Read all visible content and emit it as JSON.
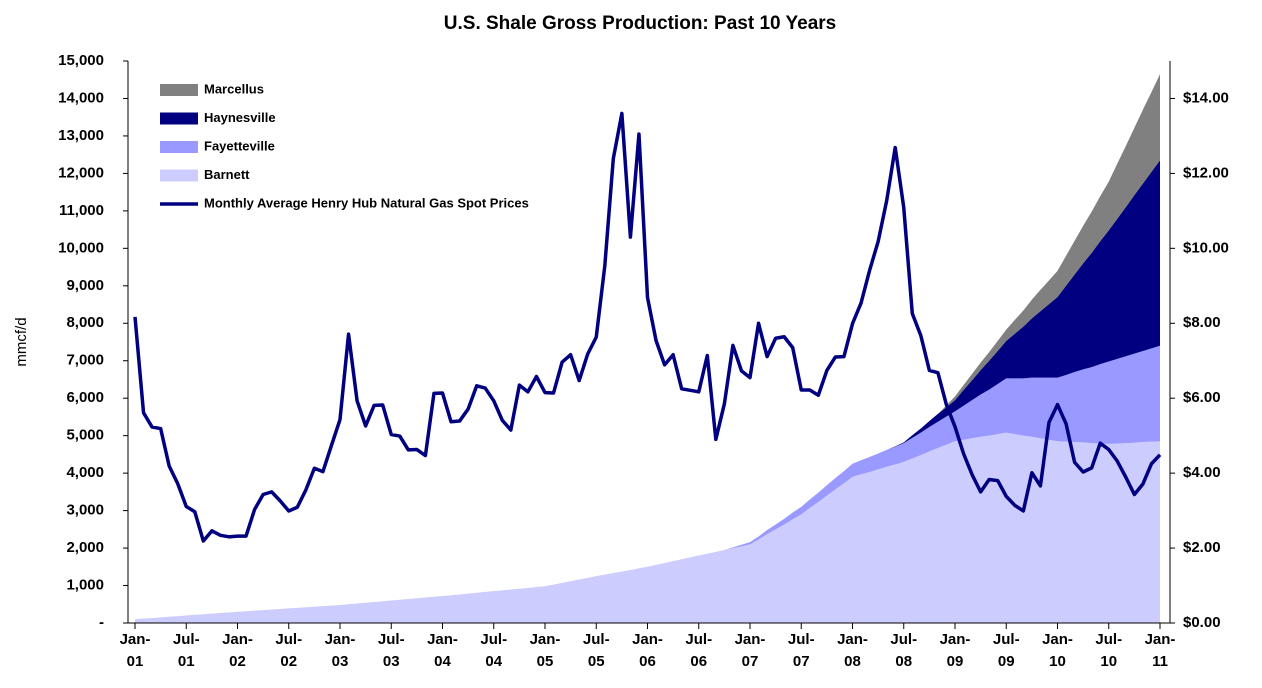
{
  "chart_data": {
    "type": "area",
    "title": "U.S. Shale Gross Production: Past 10 Years",
    "ylabel": "mmcf/d",
    "categories": [
      "Jan-01",
      null,
      null,
      null,
      null,
      null,
      "Jul-01",
      null,
      null,
      null,
      null,
      null,
      "Jan-02",
      null,
      null,
      null,
      null,
      null,
      "Jul-02",
      null,
      null,
      null,
      null,
      null,
      "Jan-03",
      null,
      null,
      null,
      null,
      null,
      "Jul-03",
      null,
      null,
      null,
      null,
      null,
      "Jan-04",
      null,
      null,
      null,
      null,
      null,
      "Jul-04",
      null,
      null,
      null,
      null,
      null,
      "Jan-05",
      null,
      null,
      null,
      null,
      null,
      "Jul-05",
      null,
      null,
      null,
      null,
      null,
      "Jan-06",
      null,
      null,
      null,
      null,
      null,
      "Jul-06",
      null,
      null,
      null,
      null,
      null,
      "Jan-07",
      null,
      null,
      null,
      null,
      null,
      "Jul-07",
      null,
      null,
      null,
      null,
      null,
      "Jan-08",
      null,
      null,
      null,
      null,
      null,
      "Jul-08",
      null,
      null,
      null,
      null,
      null,
      "Jan-09",
      null,
      null,
      null,
      null,
      null,
      "Jul-09",
      null,
      null,
      null,
      null,
      null,
      "Jan-10",
      null,
      null,
      null,
      null,
      null,
      "Jul-10",
      null,
      null,
      null,
      null,
      null,
      "Jan-11"
    ],
    "series": [
      {
        "name": "Marcellus",
        "type": "area",
        "color": "#808080",
        "values": [
          0,
          0,
          0,
          0,
          0,
          0,
          0,
          0,
          0,
          0,
          0,
          0,
          0,
          0,
          0,
          0,
          0,
          0,
          0,
          0,
          0,
          0,
          0,
          0,
          0,
          0,
          0,
          0,
          0,
          0,
          0,
          0,
          0,
          0,
          0,
          0,
          0,
          0,
          0,
          0,
          0,
          0,
          0,
          0,
          0,
          0,
          0,
          0,
          0,
          0,
          0,
          0,
          0,
          0,
          0,
          0,
          0,
          0,
          0,
          0,
          0,
          0,
          0,
          0,
          0,
          0,
          0,
          0,
          0,
          0,
          0,
          0,
          0,
          0,
          0,
          0,
          0,
          0,
          0,
          0,
          0,
          0,
          0,
          0,
          0,
          0,
          0,
          0,
          0,
          0,
          0,
          0,
          0,
          0,
          0,
          50,
          100,
          130,
          170,
          200,
          230,
          270,
          300,
          370,
          430,
          500,
          570,
          630,
          700,
          800,
          900,
          1000,
          1100,
          1200,
          1300,
          1470,
          1630,
          1800,
          1970,
          2130,
          2300
        ]
      },
      {
        "name": "Haynesville",
        "type": "area",
        "color": "#000080",
        "values": [
          0,
          0,
          0,
          0,
          0,
          0,
          0,
          0,
          0,
          0,
          0,
          0,
          0,
          0,
          0,
          0,
          0,
          0,
          0,
          0,
          0,
          0,
          0,
          0,
          0,
          0,
          0,
          0,
          0,
          0,
          0,
          0,
          0,
          0,
          0,
          0,
          0,
          0,
          0,
          0,
          0,
          0,
          0,
          0,
          0,
          0,
          0,
          0,
          0,
          0,
          0,
          0,
          0,
          0,
          0,
          0,
          0,
          0,
          0,
          0,
          0,
          0,
          0,
          0,
          0,
          0,
          0,
          0,
          0,
          0,
          0,
          0,
          0,
          0,
          0,
          0,
          0,
          0,
          0,
          0,
          0,
          0,
          0,
          0,
          0,
          0,
          0,
          0,
          0,
          10,
          20,
          70,
          110,
          160,
          210,
          250,
          300,
          420,
          530,
          650,
          770,
          880,
          1000,
          1190,
          1380,
          1580,
          1770,
          1960,
          2150,
          2380,
          2600,
          2830,
          3050,
          3280,
          3500,
          3740,
          3980,
          4230,
          4470,
          4710,
          4950
        ]
      },
      {
        "name": "Fayetteville",
        "type": "area",
        "color": "#9999ff",
        "values": [
          0,
          0,
          0,
          0,
          0,
          0,
          0,
          0,
          0,
          0,
          0,
          0,
          0,
          0,
          0,
          0,
          0,
          0,
          0,
          0,
          0,
          0,
          0,
          0,
          0,
          0,
          0,
          0,
          0,
          0,
          0,
          0,
          0,
          0,
          0,
          0,
          0,
          0,
          0,
          0,
          0,
          0,
          0,
          0,
          0,
          0,
          0,
          0,
          0,
          0,
          0,
          0,
          0,
          0,
          0,
          0,
          0,
          0,
          0,
          0,
          0,
          0,
          0,
          0,
          0,
          0,
          0,
          0,
          0,
          0,
          20,
          40,
          60,
          80,
          110,
          130,
          150,
          180,
          200,
          225,
          250,
          275,
          300,
          325,
          350,
          375,
          400,
          425,
          450,
          475,
          500,
          550,
          600,
          650,
          700,
          750,
          800,
          910,
          1020,
          1130,
          1230,
          1340,
          1450,
          1490,
          1530,
          1580,
          1620,
          1660,
          1700,
          1780,
          1870,
          1950,
          2030,
          2120,
          2200,
          2260,
          2320,
          2380,
          2430,
          2490,
          2550
        ]
      },
      {
        "name": "Barnett",
        "type": "area",
        "color": "#ccccff",
        "values": [
          100,
          120,
          130,
          150,
          170,
          180,
          200,
          220,
          230,
          250,
          270,
          280,
          300,
          315,
          330,
          345,
          360,
          375,
          390,
          405,
          420,
          435,
          450,
          465,
          480,
          500,
          520,
          540,
          560,
          580,
          600,
          620,
          640,
          660,
          680,
          700,
          720,
          740,
          760,
          785,
          805,
          830,
          850,
          870,
          895,
          915,
          935,
          960,
          980,
          1025,
          1070,
          1115,
          1160,
          1205,
          1250,
          1290,
          1335,
          1375,
          1415,
          1460,
          1500,
          1550,
          1600,
          1650,
          1700,
          1750,
          1800,
          1850,
          1900,
          1950,
          2000,
          2050,
          2100,
          2230,
          2370,
          2500,
          2630,
          2770,
          2900,
          3070,
          3230,
          3400,
          3570,
          3730,
          3900,
          3970,
          4030,
          4100,
          4170,
          4230,
          4300,
          4390,
          4480,
          4580,
          4670,
          4760,
          4850,
          4890,
          4930,
          4970,
          5000,
          5040,
          5080,
          5040,
          5000,
          4970,
          4930,
          4890,
          4850,
          4840,
          4830,
          4820,
          4800,
          4790,
          4780,
          4790,
          4800,
          4810,
          4830,
          4840,
          4850
        ]
      },
      {
        "name": "Monthly Average Henry Hub Natural Gas Spot Prices",
        "type": "line",
        "axis": "y2",
        "color": "#000080",
        "values": [
          8.17,
          5.61,
          5.23,
          5.19,
          4.19,
          3.72,
          3.11,
          2.97,
          2.19,
          2.46,
          2.34,
          2.3,
          2.32,
          2.32,
          3.03,
          3.43,
          3.5,
          3.26,
          2.99,
          3.09,
          3.55,
          4.13,
          4.04,
          4.74,
          5.43,
          7.71,
          5.93,
          5.26,
          5.81,
          5.82,
          5.03,
          4.99,
          4.62,
          4.63,
          4.47,
          6.13,
          6.14,
          5.37,
          5.39,
          5.71,
          6.33,
          6.27,
          5.93,
          5.41,
          5.15,
          6.35,
          6.17,
          6.58,
          6.15,
          6.14,
          6.96,
          7.16,
          6.47,
          7.18,
          7.63,
          9.53,
          12.4,
          13.6,
          10.3,
          13.05,
          8.69,
          7.54,
          6.89,
          7.16,
          6.25,
          6.21,
          6.17,
          7.14,
          4.9,
          5.85,
          7.41,
          6.73,
          6.55,
          8.0,
          7.11,
          7.6,
          7.64,
          7.35,
          6.22,
          6.22,
          6.08,
          6.74,
          7.1,
          7.11,
          7.99,
          8.54,
          9.41,
          10.18,
          11.27,
          12.69,
          11.09,
          8.26,
          7.67,
          6.74,
          6.68,
          5.82,
          5.24,
          4.52,
          3.96,
          3.5,
          3.83,
          3.8,
          3.38,
          3.14,
          2.99,
          4.01,
          3.66,
          5.35,
          5.83,
          5.32,
          4.29,
          4.03,
          4.14,
          4.8,
          4.63,
          4.32,
          3.89,
          3.43,
          3.71,
          4.25,
          4.49
        ]
      }
    ],
    "ylim": [
      0,
      15000
    ],
    "yticks": [
      {
        "value": 0,
        "label": "-"
      },
      {
        "value": 1000,
        "label": "1,000"
      },
      {
        "value": 2000,
        "label": "2,000"
      },
      {
        "value": 3000,
        "label": "3,000"
      },
      {
        "value": 4000,
        "label": "4,000"
      },
      {
        "value": 5000,
        "label": "5,000"
      },
      {
        "value": 6000,
        "label": "6,000"
      },
      {
        "value": 7000,
        "label": "7,000"
      },
      {
        "value": 8000,
        "label": "8,000"
      },
      {
        "value": 9000,
        "label": "9,000"
      },
      {
        "value": 10000,
        "label": "10,000"
      },
      {
        "value": 11000,
        "label": "11,000"
      },
      {
        "value": 12000,
        "label": "12,000"
      },
      {
        "value": 13000,
        "label": "13,000"
      },
      {
        "value": 14000,
        "label": "14,000"
      },
      {
        "value": 15000,
        "label": "15,000"
      }
    ],
    "y2lim": [
      0,
      15
    ],
    "y2ticks": [
      {
        "value": 0,
        "label": "$0.00"
      },
      {
        "value": 2,
        "label": "$2.00"
      },
      {
        "value": 4,
        "label": "$4.00"
      },
      {
        "value": 6,
        "label": "$6.00"
      },
      {
        "value": 8,
        "label": "$8.00"
      },
      {
        "value": 10,
        "label": "$10.00"
      },
      {
        "value": 12,
        "label": "$12.00"
      },
      {
        "value": 14,
        "label": "$14.00"
      }
    ],
    "grid": false,
    "legend": "upper left"
  }
}
